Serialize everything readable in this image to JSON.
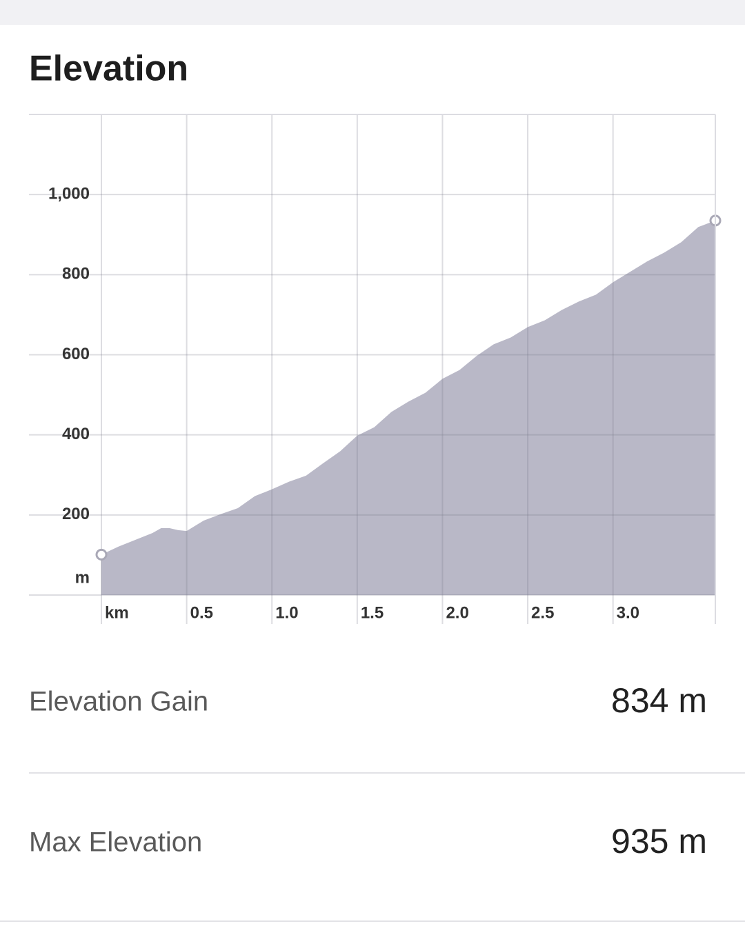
{
  "chart_data": {
    "type": "area",
    "title": "Elevation",
    "x": [
      0,
      0.1,
      0.2,
      0.3,
      0.35,
      0.4,
      0.45,
      0.5,
      0.6,
      0.7,
      0.8,
      0.9,
      1.0,
      1.1,
      1.2,
      1.3,
      1.4,
      1.5,
      1.6,
      1.7,
      1.8,
      1.9,
      2.0,
      2.1,
      2.2,
      2.3,
      2.4,
      2.5,
      2.6,
      2.7,
      2.8,
      2.9,
      3.0,
      3.1,
      3.2,
      3.3,
      3.4,
      3.5,
      3.6
    ],
    "values": [
      101,
      121,
      138,
      155,
      167,
      167,
      162,
      160,
      186,
      202,
      217,
      247,
      264,
      283,
      298,
      329,
      359,
      398,
      419,
      457,
      483,
      505,
      540,
      562,
      597,
      626,
      643,
      669,
      686,
      712,
      733,
      750,
      781,
      807,
      833,
      855,
      881,
      919,
      935
    ],
    "color": "#b9b8c7",
    "xlim": [
      0,
      3.6
    ],
    "xticks": [
      {
        "value": 0,
        "label": "km"
      },
      0.5,
      {
        "value": 1,
        "label": "1.0"
      },
      1.5,
      {
        "value": 2,
        "label": "2.0"
      },
      2.5,
      {
        "value": 3,
        "label": "3.0"
      }
    ],
    "ylim": [
      0,
      1200
    ],
    "yticks": [
      {
        "value": 0,
        "label": "m"
      },
      200,
      400,
      600,
      800,
      {
        "value": 1000,
        "label": "1,000"
      }
    ],
    "grid": true
  },
  "stats": [
    {
      "label": "Elevation Gain",
      "value": "834 m"
    },
    {
      "label": "Max Elevation",
      "value": "935 m"
    }
  ]
}
